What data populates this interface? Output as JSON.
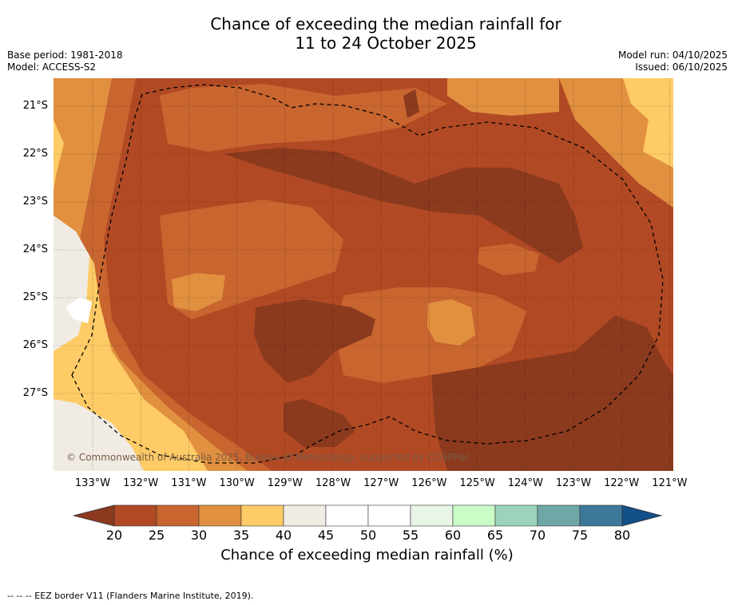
{
  "title": {
    "line1": "Chance of exceeding the median rainfall for",
    "line2": "11 to 24 October 2025"
  },
  "meta": {
    "base_period": "Base period: 1981-2018",
    "model": "Model: ACCESS-S2",
    "model_run": "Model run: 04/10/2025",
    "issued": "Issued: 06/10/2025"
  },
  "map": {
    "latitude_labels": [
      "21°S",
      "22°S",
      "23°S",
      "24°S",
      "25°S",
      "26°S",
      "27°S"
    ],
    "longitude_labels": [
      "133°W",
      "132°W",
      "131°W",
      "130°W",
      "129°W",
      "128°W",
      "127°W",
      "126°W",
      "125°W",
      "124°W",
      "123°W",
      "122°W",
      "121°W"
    ],
    "copyright": "© Commonwealth of Australia 2025, Bureau of Meteorology, supported by COSPPac",
    "boundary": "EEZ border (dashed line)"
  },
  "colorbar": {
    "ticks": [
      "20",
      "25",
      "30",
      "35",
      "40",
      "45",
      "50",
      "55",
      "60",
      "65",
      "70",
      "75",
      "80"
    ],
    "colors": [
      "#b14a24",
      "#c9652f",
      "#e0903f",
      "#fecb66",
      "#f0ece4",
      "#ffffff",
      "#ffffff",
      "#e9f5e7",
      "#c9fcc7",
      "#9dd3bb",
      "#6fa6a6",
      "#3d7899"
    ],
    "under_color": "#8b3a1e",
    "over_color": "#134f88",
    "label": "Chance of exceeding median rainfall (%)"
  },
  "footnote": "--  --  -- EEZ border V11 (Flanders Marine Institute, 2019)."
}
